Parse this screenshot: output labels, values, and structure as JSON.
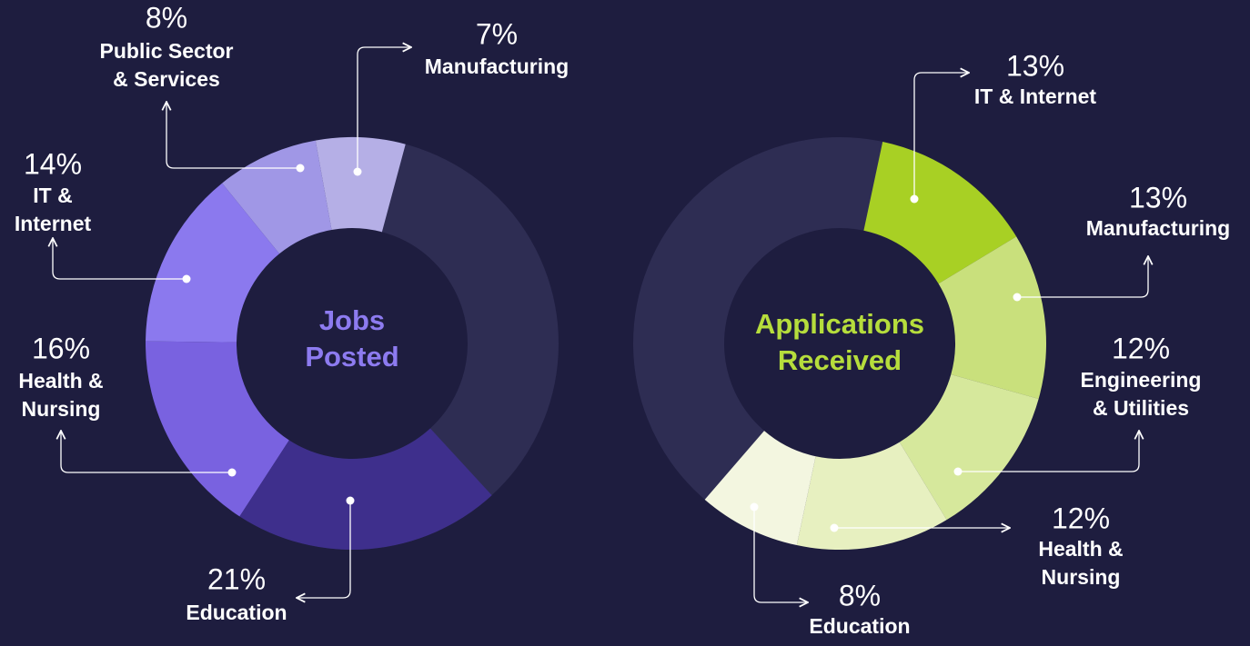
{
  "chart_data": [
    {
      "type": "donut",
      "title": "Jobs Posted",
      "title_color": "#8d7bf0",
      "categories": [
        [
          "Manufacturing"
        ],
        [
          "Public Sector",
          "& Services"
        ],
        [
          "IT &",
          "Internet"
        ],
        [
          "Health &",
          "Nursing"
        ],
        [
          "Education"
        ]
      ],
      "values": [
        7,
        8,
        14,
        16,
        21
      ],
      "value_labels": [
        "7%",
        "8%",
        "14%",
        "16%",
        "21%"
      ],
      "colors": [
        "#b5afe6",
        "#a097e6",
        "#8b79ee",
        "#7962e0",
        "#3e2f8c"
      ]
    },
    {
      "type": "donut",
      "title": "Applications Received",
      "title_color": "#b6dd3c",
      "categories": [
        [
          "IT & Internet"
        ],
        [
          "Manufacturing"
        ],
        [
          "Engineering",
          "& Utilities"
        ],
        [
          "Health &",
          "Nursing"
        ],
        [
          "Education"
        ]
      ],
      "values": [
        13,
        13,
        12,
        12,
        8
      ],
      "value_labels": [
        "13%",
        "13%",
        "12%",
        "12%",
        "8%"
      ],
      "colors": [
        "#a8d024",
        "#c9e07c",
        "#d6e89c",
        "#e7f0c0",
        "#f3f6e0"
      ]
    }
  ]
}
